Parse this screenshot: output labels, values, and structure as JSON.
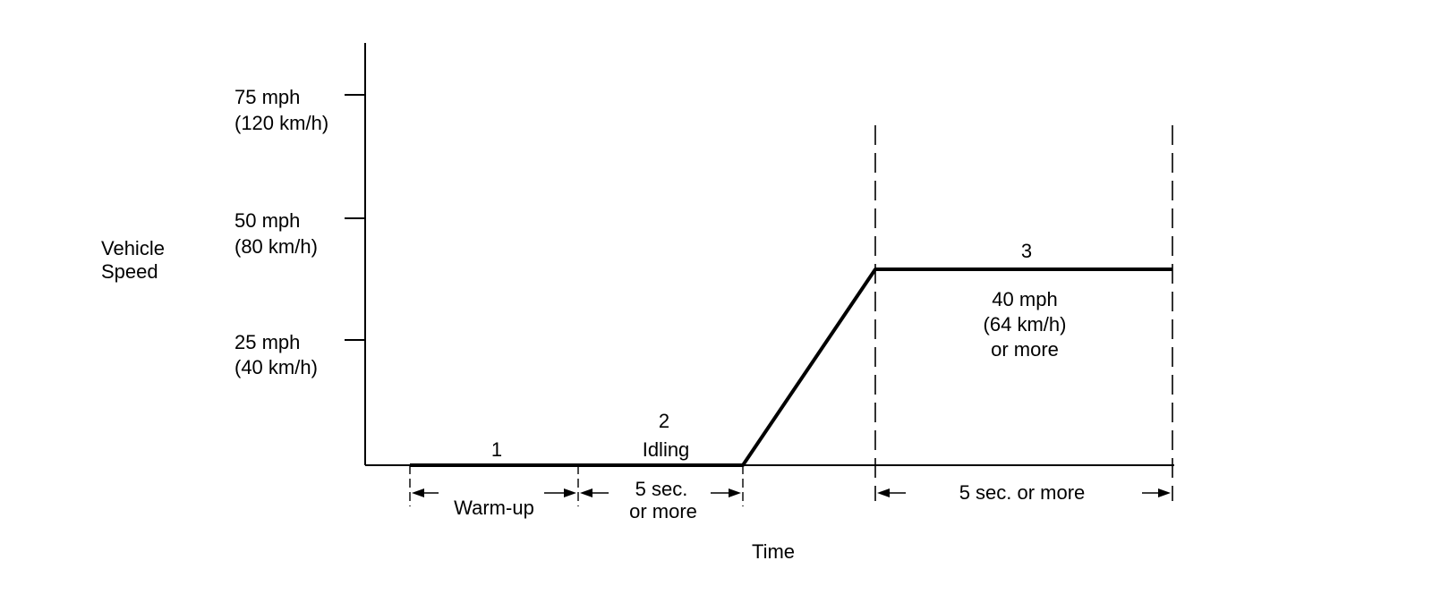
{
  "axes": {
    "y_label": [
      "Vehicle",
      "Speed"
    ],
    "x_label": "Time",
    "ticks": [
      {
        "speed_mph": 75,
        "lines": [
          "75 mph",
          "(120 km/h)"
        ]
      },
      {
        "speed_mph": 50,
        "lines": [
          "50 mph",
          "(80 km/h)"
        ]
      },
      {
        "speed_mph": 25,
        "lines": [
          "25 mph",
          "(40 km/h)"
        ]
      }
    ]
  },
  "phases": [
    {
      "number": "1",
      "name": "",
      "duration": [
        "Warm-up"
      ]
    },
    {
      "number": "2",
      "name": "Idling",
      "duration": [
        "5 sec.",
        "or more"
      ]
    },
    {
      "number": "3",
      "name": "",
      "speed": [
        "40 mph",
        "(64 km/h)",
        "or more"
      ],
      "duration": [
        "5 sec. or more"
      ]
    }
  ],
  "cruise_speed_mph": 40
}
